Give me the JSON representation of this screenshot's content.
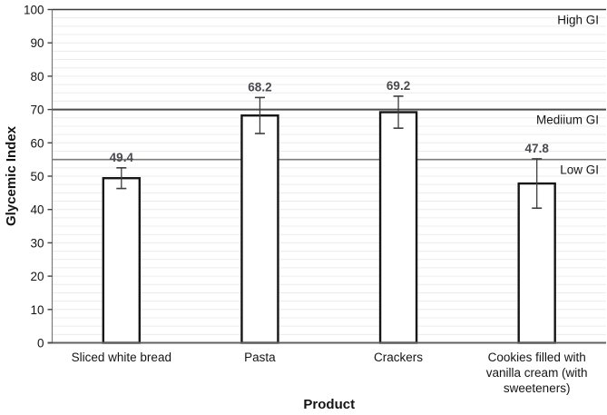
{
  "chart_data": {
    "type": "bar",
    "title": "",
    "xlabel": "Product",
    "ylabel": "Glycemic Index",
    "ylim": [
      0,
      100
    ],
    "yticks": [
      0,
      10,
      20,
      30,
      40,
      50,
      60,
      70,
      80,
      90,
      100
    ],
    "minor_gridline_step": 2.5,
    "grid": "minor horizontal only",
    "legend": null,
    "categories": [
      "Sliced white bread",
      "Pasta",
      "Crackers",
      "Cookies filled with vanilla cream (with sweeteners)"
    ],
    "category_label_lines": [
      [
        "Sliced white bread"
      ],
      [
        "Pasta"
      ],
      [
        "Crackers"
      ],
      [
        "Cookies filled with",
        "vanilla cream (with",
        "sweeteners)"
      ]
    ],
    "values": [
      49.4,
      68.2,
      69.2,
      47.8
    ],
    "value_labels": [
      "49.4",
      "68.2",
      "69.2",
      "47.8"
    ],
    "error_bars": [
      3.1,
      5.4,
      4.8,
      7.4
    ],
    "reference_lines": [
      {
        "value": 100,
        "label": "High GI",
        "stroke": "#3b3b3b",
        "width": 1.6
      },
      {
        "value": 70,
        "label": "Mediium GI",
        "stroke": "#4c4c4c",
        "width": 2
      },
      {
        "value": 55,
        "label": "Low GI",
        "stroke": "#7b7b7b",
        "width": 1.6
      }
    ],
    "colors": {
      "bar_fill": "#ffffff",
      "bar_border": "#161616",
      "value_label": "#4a4a4e",
      "text": "#141414",
      "minor_grid": "#ececec",
      "axis": "#7a7a7a",
      "x_axis": "#616161",
      "tick": "#444444",
      "error_bar": "#3d3d3d"
    }
  }
}
